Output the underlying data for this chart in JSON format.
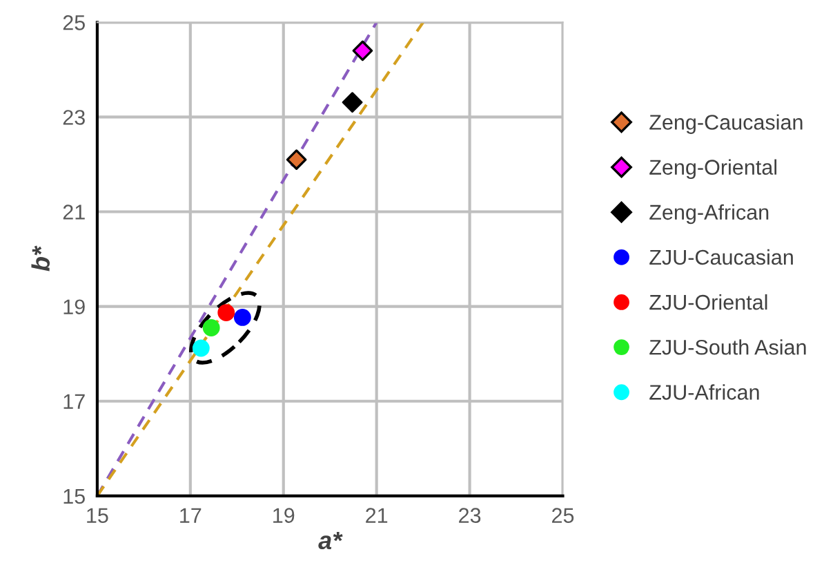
{
  "chart_data": {
    "type": "scatter",
    "xlabel": "a*",
    "ylabel": "b*",
    "xlim": [
      15,
      25
    ],
    "ylim": [
      15,
      25
    ],
    "xticks": [
      15,
      17,
      19,
      21,
      23,
      25
    ],
    "yticks": [
      15,
      17,
      19,
      21,
      23,
      25
    ],
    "grid": true,
    "legend": "right",
    "series": [
      {
        "type": "line",
        "color": "#8a5cc0",
        "line_style": "dashed",
        "marker": "none",
        "x": [
          15,
          21
        ],
        "values": [
          15,
          25
        ]
      },
      {
        "type": "line",
        "color": "#d4a020",
        "line_style": "dashed",
        "marker": "none",
        "x": [
          15,
          22
        ],
        "values": [
          15,
          25
        ]
      },
      {
        "name": "Zeng-Caucasian",
        "color": "#e07030",
        "marker": "diamond",
        "x": [
          19.28
        ],
        "values": [
          22.1
        ]
      },
      {
        "name": "Zeng-Oriental",
        "color": "#ff00ff",
        "marker": "diamond",
        "x": [
          20.7
        ],
        "values": [
          24.4
        ]
      },
      {
        "name": "Zeng-African",
        "color": "#000000",
        "marker": "diamond",
        "x": [
          20.48
        ],
        "values": [
          23.31
        ]
      },
      {
        "name": "ZJU-Caucasian",
        "color": "#0000ff",
        "marker": "circle",
        "x": [
          18.12
        ],
        "values": [
          18.77
        ]
      },
      {
        "name": "ZJU-Oriental",
        "color": "#ff0000",
        "marker": "circle",
        "x": [
          17.77
        ],
        "values": [
          18.87
        ]
      },
      {
        "name": "ZJU-South Asian",
        "color": "#22ee22",
        "marker": "circle",
        "x": [
          17.45
        ],
        "values": [
          18.55
        ]
      },
      {
        "name": "ZJU-African",
        "color": "#00ffff",
        "marker": "circle",
        "x": [
          17.23
        ],
        "values": [
          18.12
        ]
      }
    ]
  }
}
